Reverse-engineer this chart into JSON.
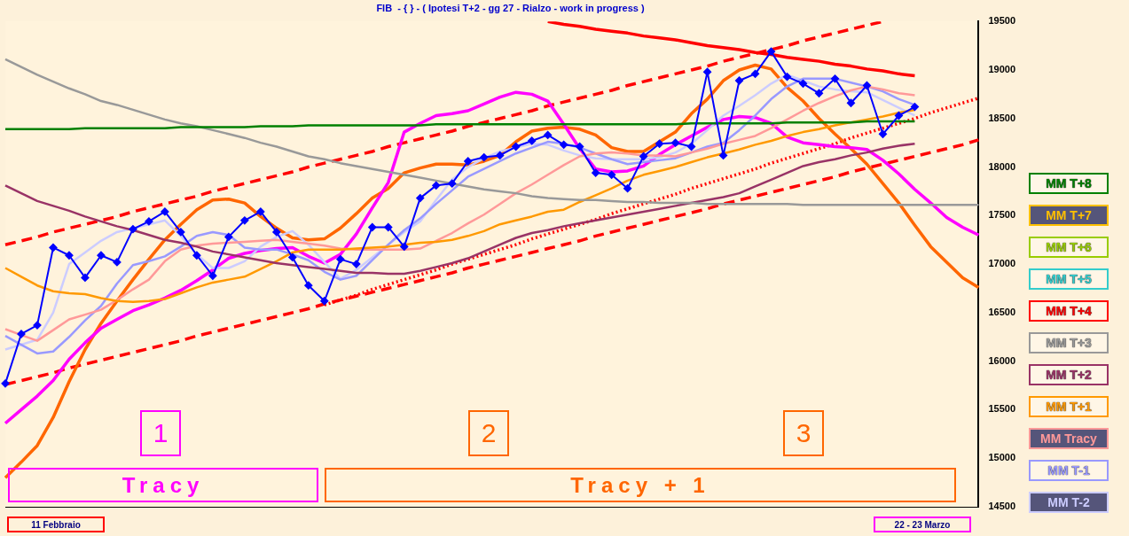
{
  "chart_data": {
    "type": "line",
    "title": "FIB  - { } - ( Ipotesi T+2 - gg 27 - Rialzo - work in progress )",
    "categories": [
      null,
      null,
      null,
      null,
      null,
      null,
      null,
      null,
      null,
      null,
      null,
      null,
      null,
      null,
      null,
      null,
      null,
      null,
      null,
      null,
      null,
      null,
      null,
      null,
      null,
      null,
      null,
      null,
      null,
      null,
      null,
      null,
      null,
      null,
      null,
      null,
      null,
      null,
      null,
      null,
      null,
      null,
      null,
      null,
      null,
      null,
      null,
      null,
      null,
      null,
      null,
      null,
      null,
      null,
      null,
      null,
      null,
      null,
      null,
      null,
      null,
      null
    ],
    "ylim": [
      14500,
      19500
    ],
    "yticks": [
      14500,
      15000,
      15500,
      16000,
      16500,
      17000,
      17500,
      18000,
      18500,
      19000,
      19500
    ],
    "tick_labels": "y",
    "grid": false,
    "legend": "right",
    "marker": "none",
    "line_style": "solid",
    "series": [
      {
        "color": "#0000ff",
        "marker": "diamond",
        "values": [
          15770,
          16280,
          16370,
          17170,
          17090,
          16860,
          17090,
          17020,
          17360,
          17440,
          17540,
          17330,
          17090,
          16880,
          17280,
          17450,
          17540,
          17330,
          17070,
          16780,
          16620,
          17050,
          17000,
          17380,
          17380,
          17180,
          17680,
          17810,
          17830,
          18060,
          18100,
          18120,
          18210,
          18270,
          18330,
          18230,
          18210,
          17940,
          17920,
          17780,
          18110,
          18240,
          18250,
          18210,
          18980,
          18120,
          18890,
          18960,
          19190,
          18930,
          18860,
          18760,
          18910,
          18660,
          18840,
          18340,
          18530,
          18620,
          null,
          null,
          null,
          null
        ]
      },
      {
        "name": "MM T+8",
        "color": "#008000",
        "values": [
          18390,
          18390,
          18390,
          18390,
          18390,
          18400,
          18400,
          18400,
          18400,
          18400,
          18400,
          18410,
          18410,
          18410,
          18410,
          18410,
          18420,
          18420,
          18420,
          18430,
          18430,
          18430,
          18430,
          18430,
          18430,
          18430,
          18430,
          18440,
          18440,
          18440,
          18440,
          18440,
          18440,
          18440,
          18440,
          18440,
          18440,
          18440,
          18440,
          18440,
          18440,
          18440,
          18440,
          18450,
          18450,
          18450,
          18450,
          18450,
          18450,
          18460,
          18460,
          18460,
          18460,
          18460,
          18470,
          18470,
          18470,
          18470,
          null,
          null,
          null,
          null
        ]
      },
      {
        "name": "MM T+7",
        "color": "#ffc000",
        "values": [
          null,
          null,
          null,
          null,
          null,
          null,
          null,
          null,
          null,
          null,
          null,
          null,
          null,
          null,
          null,
          null,
          null,
          null,
          null,
          null,
          null,
          null,
          null,
          null,
          null,
          null,
          null,
          null,
          null,
          null,
          null,
          null,
          null,
          null,
          null,
          null,
          null,
          null,
          null,
          null,
          null,
          null,
          null,
          null,
          null,
          null,
          null,
          null,
          null,
          null,
          null,
          null,
          null,
          null,
          null,
          null,
          null,
          null,
          null,
          null,
          null,
          null
        ]
      },
      {
        "name": "MM T+6",
        "color": "#99cc00",
        "values": [
          null,
          null,
          null,
          null,
          null,
          null,
          null,
          null,
          null,
          null,
          null,
          null,
          null,
          null,
          null,
          null,
          null,
          null,
          null,
          null,
          null,
          null,
          null,
          null,
          null,
          null,
          null,
          null,
          null,
          null,
          null,
          null,
          null,
          null,
          null,
          null,
          null,
          null,
          null,
          null,
          null,
          null,
          null,
          null,
          null,
          null,
          null,
          null,
          null,
          null,
          null,
          null,
          null,
          null,
          null,
          null,
          null,
          null,
          null,
          null,
          null,
          null
        ]
      },
      {
        "name": "MM T+5",
        "color": "#33cccc",
        "values": [
          null,
          null,
          null,
          null,
          null,
          null,
          null,
          null,
          null,
          null,
          null,
          null,
          null,
          null,
          null,
          null,
          null,
          null,
          null,
          null,
          null,
          null,
          null,
          null,
          null,
          null,
          null,
          null,
          null,
          null,
          null,
          null,
          null,
          null,
          null,
          null,
          null,
          null,
          null,
          null,
          null,
          null,
          null,
          null,
          null,
          null,
          null,
          null,
          null,
          null,
          null,
          null,
          null,
          null,
          null,
          null,
          null,
          null,
          null,
          null,
          null,
          null
        ]
      },
      {
        "name": "MM T+4",
        "color": "#ff0000",
        "values": [
          null,
          null,
          null,
          null,
          null,
          null,
          null,
          null,
          null,
          null,
          null,
          null,
          null,
          null,
          null,
          null,
          null,
          null,
          null,
          null,
          null,
          null,
          null,
          null,
          null,
          null,
          null,
          null,
          null,
          null,
          null,
          null,
          null,
          null,
          null,
          null,
          null,
          null,
          null,
          null,
          null,
          null,
          null,
          null,
          null,
          null,
          null,
          null,
          null,
          null,
          null,
          null,
          null,
          null,
          null,
          null,
          null,
          null,
          null,
          null,
          null,
          null
        ]
      },
      {
        "name": "MM T+3",
        "color": "#999999",
        "values": [
          19110,
          19030,
          18950,
          18880,
          18810,
          18750,
          18680,
          18640,
          18590,
          18540,
          18490,
          18450,
          18420,
          18380,
          18340,
          18300,
          18250,
          18210,
          18160,
          18110,
          18080,
          18040,
          18010,
          17980,
          17950,
          17920,
          17890,
          17860,
          17830,
          17800,
          17770,
          17750,
          17730,
          17700,
          17680,
          17670,
          17660,
          17660,
          17650,
          17640,
          17640,
          17630,
          17630,
          17630,
          17620,
          17620,
          17620,
          17620,
          17620,
          17620,
          17610,
          17610,
          17610,
          17610,
          17610,
          17610,
          17610,
          17610,
          17610,
          17610,
          17610,
          17610
        ]
      },
      {
        "name": "MM T+2",
        "color": "#993366",
        "values": [
          17810,
          17730,
          17650,
          17600,
          17550,
          17490,
          17440,
          17390,
          17350,
          17300,
          17250,
          17220,
          17180,
          17130,
          17100,
          17070,
          17040,
          17010,
          16990,
          16970,
          16950,
          16930,
          16910,
          16910,
          16900,
          16900,
          16930,
          16970,
          17010,
          17060,
          17130,
          17200,
          17270,
          17320,
          17350,
          17390,
          17420,
          17450,
          17480,
          17510,
          17540,
          17570,
          17600,
          17630,
          17660,
          17690,
          17730,
          17800,
          17870,
          17940,
          18010,
          18050,
          18080,
          18120,
          18150,
          18190,
          18220,
          18240,
          null,
          null,
          null,
          null
        ]
      },
      {
        "name": "MM T+1",
        "color": "#ff9900",
        "values": [
          16960,
          16870,
          16780,
          16720,
          16700,
          16690,
          16650,
          16620,
          16610,
          16620,
          16640,
          16700,
          16760,
          16810,
          16840,
          16870,
          16950,
          17030,
          17120,
          17150,
          17150,
          17150,
          17160,
          17170,
          17180,
          17200,
          17220,
          17230,
          17250,
          17290,
          17340,
          17410,
          17450,
          17490,
          17540,
          17560,
          17640,
          17710,
          17780,
          17860,
          17920,
          17960,
          18000,
          18050,
          18100,
          18140,
          18180,
          18230,
          18270,
          18320,
          18360,
          18390,
          18430,
          18460,
          18490,
          18520,
          18560,
          18590,
          null,
          null,
          null,
          null
        ]
      },
      {
        "name": "MM Tracy",
        "color": "#ff9999",
        "values": [
          16330,
          16270,
          16210,
          16320,
          16430,
          16480,
          16530,
          16630,
          16740,
          16840,
          17030,
          17150,
          17190,
          17210,
          17220,
          17230,
          17240,
          17250,
          17230,
          17210,
          17190,
          17160,
          17150,
          17150,
          17150,
          17150,
          17160,
          17240,
          17320,
          17420,
          17510,
          17620,
          17730,
          17820,
          17920,
          18020,
          18110,
          18140,
          18150,
          18140,
          18120,
          18120,
          18110,
          18150,
          18190,
          18240,
          18280,
          18320,
          18400,
          18490,
          18580,
          18660,
          18730,
          18790,
          18830,
          18800,
          18760,
          18740,
          null,
          null,
          null,
          null
        ]
      },
      {
        "name": "MM T-1",
        "color": "#9999ff",
        "values": [
          16260,
          16170,
          16080,
          16100,
          16250,
          16420,
          16570,
          16800,
          16990,
          17030,
          17080,
          17180,
          17290,
          17330,
          17300,
          17170,
          17150,
          17150,
          17100,
          17040,
          16920,
          16840,
          16880,
          17040,
          17200,
          17350,
          17470,
          17620,
          17760,
          17900,
          17980,
          18060,
          18140,
          18200,
          18260,
          18240,
          18200,
          18140,
          18080,
          18030,
          18050,
          18070,
          18090,
          18150,
          18210,
          18250,
          18380,
          18530,
          18700,
          18830,
          18910,
          18910,
          18910,
          18870,
          18830,
          18780,
          18700,
          18640,
          null,
          null,
          null,
          null
        ]
      },
      {
        "name": "MM T-2",
        "color": "#ccccff",
        "values": [
          16120,
          16170,
          16220,
          16500,
          17000,
          17120,
          17240,
          17330,
          17370,
          17410,
          17450,
          17290,
          17100,
          16960,
          16960,
          17030,
          17180,
          17280,
          17340,
          17200,
          17020,
          16850,
          16940,
          17070,
          17200,
          17330,
          17440,
          17660,
          17870,
          18000,
          18090,
          18160,
          18200,
          18240,
          18230,
          18170,
          18120,
          18090,
          18080,
          18080,
          18080,
          18100,
          18150,
          18240,
          18380,
          18530,
          18630,
          18740,
          18860,
          18950,
          18890,
          18830,
          18800,
          18780,
          18770,
          18690,
          18610,
          18530,
          null,
          null,
          null,
          null
        ]
      },
      {
        "color": "#ff00ff",
        "values": [
          15360,
          15500,
          15640,
          15800,
          16020,
          16190,
          16340,
          16430,
          16520,
          16580,
          16650,
          16730,
          16830,
          16940,
          17060,
          17110,
          17140,
          17160,
          17170,
          17080,
          17010,
          17100,
          17310,
          17580,
          17840,
          18360,
          18450,
          18530,
          18550,
          18580,
          18650,
          18720,
          18770,
          18750,
          18680,
          18440,
          18190,
          17980,
          17950,
          17960,
          18010,
          18130,
          18230,
          18320,
          18410,
          18490,
          18520,
          18510,
          18450,
          18310,
          18250,
          18230,
          18210,
          18200,
          18180,
          18070,
          17930,
          17770,
          17630,
          17480,
          17380,
          17300
        ]
      },
      {
        "color": "#ff6600",
        "values": [
          14800,
          14960,
          15130,
          15420,
          15790,
          16120,
          16390,
          16620,
          16840,
          17050,
          17250,
          17410,
          17560,
          17660,
          17670,
          17630,
          17490,
          17370,
          17270,
          17250,
          17260,
          17370,
          17520,
          17680,
          17780,
          17940,
          17990,
          18030,
          18030,
          18020,
          18060,
          18120,
          18260,
          18370,
          18400,
          18410,
          18390,
          18330,
          18200,
          18160,
          18160,
          18260,
          18360,
          18550,
          18700,
          18890,
          19000,
          19050,
          19010,
          18820,
          18680,
          18500,
          18340,
          18190,
          18030,
          17830,
          17630,
          17400,
          17180,
          17020,
          16860,
          16760
        ]
      },
      {
        "color": "#ff0000",
        "values": [
          null,
          null,
          null,
          null,
          null,
          null,
          null,
          null,
          null,
          null,
          null,
          null,
          null,
          null,
          null,
          null,
          null,
          null,
          null,
          null,
          null,
          null,
          null,
          null,
          null,
          null,
          null,
          null,
          null,
          null,
          null,
          null,
          null,
          null,
          19500,
          19470,
          19450,
          19420,
          19400,
          19380,
          19350,
          19330,
          19310,
          19280,
          19250,
          19230,
          19210,
          19180,
          19160,
          19130,
          19110,
          19090,
          19060,
          19040,
          19010,
          18990,
          18960,
          18940,
          null,
          null,
          null,
          null
        ]
      },
      {
        "color": "#ff0000",
        "line_style": "dashed",
        "values": [
          17200,
          17240,
          17280,
          17330,
          17370,
          17410,
          17450,
          17490,
          17540,
          17580,
          17620,
          17660,
          17700,
          17750,
          17790,
          17830,
          17870,
          17910,
          17950,
          18000,
          18040,
          18080,
          18120,
          18160,
          18210,
          18250,
          18290,
          18330,
          18370,
          18420,
          18460,
          18500,
          18540,
          18580,
          18630,
          18670,
          18710,
          18750,
          18790,
          18840,
          18880,
          18920,
          18960,
          19000,
          19040,
          19090,
          19130,
          19170,
          19210,
          19250,
          19300,
          19340,
          19380,
          19420,
          19460,
          19500,
          null,
          null,
          null,
          null,
          null,
          null
        ]
      },
      {
        "color": "#ff0000",
        "line_style": "dashed",
        "values": [
          15760,
          15800,
          15840,
          15880,
          15930,
          15970,
          16010,
          16050,
          16090,
          16130,
          16170,
          16210,
          16260,
          16300,
          16340,
          16380,
          16420,
          16460,
          16500,
          16540,
          16590,
          16630,
          16670,
          16710,
          16750,
          16790,
          16830,
          16870,
          16910,
          16960,
          17000,
          17040,
          17080,
          17120,
          17160,
          17200,
          17240,
          17290,
          17330,
          17370,
          17410,
          17450,
          17490,
          17530,
          17570,
          17620,
          17660,
          17700,
          17740,
          17780,
          17820,
          17860,
          17900,
          17950,
          17990,
          18030,
          18070,
          18110,
          18150,
          18190,
          18230,
          18280
        ]
      },
      {
        "color": "#ff0000",
        "line_style": "dotted",
        "values": [
          null,
          null,
          null,
          null,
          null,
          null,
          null,
          null,
          null,
          null,
          null,
          null,
          null,
          null,
          null,
          null,
          null,
          null,
          null,
          null,
          16580,
          16630,
          16680,
          16740,
          16790,
          16840,
          16890,
          16940,
          17000,
          17050,
          17100,
          17150,
          17200,
          17260,
          17310,
          17360,
          17410,
          17460,
          17520,
          17570,
          17620,
          17670,
          17720,
          17780,
          17830,
          17880,
          17930,
          17980,
          18040,
          18090,
          18140,
          18190,
          18240,
          18300,
          18350,
          18400,
          18450,
          18500,
          18560,
          18610,
          18660,
          18710
        ]
      }
    ],
    "annotations": [
      "1",
      "2",
      "3",
      "Tracy",
      "Tracy + 1",
      "11 Febbraio",
      "22 - 23 Marzo"
    ]
  }
}
